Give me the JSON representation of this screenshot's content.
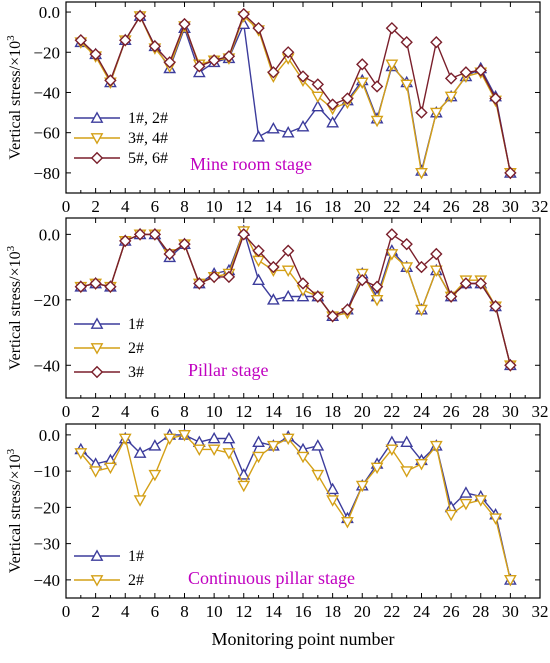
{
  "chart_data": [
    {
      "type": "line",
      "ylabel": "Vertical stress/×10",
      "ylabel_sup": "3",
      "xlim": [
        0,
        32
      ],
      "ylim": [
        -90,
        5
      ],
      "xticks": [
        0,
        2,
        4,
        6,
        8,
        10,
        12,
        14,
        16,
        18,
        20,
        22,
        24,
        26,
        28,
        30,
        32
      ],
      "yticks": [
        0,
        -20,
        -40,
        -60,
        -80
      ],
      "ytick_labels": [
        "0.0",
        "−20",
        "−40",
        "−60",
        "−80"
      ],
      "stage_label": "Mine room stage",
      "x": [
        1,
        2,
        3,
        4,
        5,
        6,
        7,
        8,
        9,
        10,
        11,
        12,
        13,
        14,
        15,
        16,
        17,
        18,
        19,
        20,
        21,
        22,
        23,
        24,
        25,
        26,
        27,
        28,
        29,
        30
      ],
      "series": [
        {
          "name": "1#, 2#",
          "color": "#3c3c9c",
          "marker": "triangle-up",
          "values": [
            -15,
            -21,
            -35,
            -14,
            -2,
            -17,
            -28,
            -8,
            -30,
            -25,
            -23,
            -6,
            -62,
            -58,
            -60,
            -57,
            -47,
            -55,
            -44,
            -34,
            -53,
            -27,
            -35,
            -79,
            -50,
            -42,
            -32,
            -28,
            -42,
            -80
          ]
        },
        {
          "name": "3#, 4#",
          "color": "#d4a017",
          "marker": "triangle-down",
          "values": [
            -15,
            -22,
            -35,
            -14,
            -2,
            -18,
            -27,
            -7,
            -26,
            -24,
            -23,
            -2,
            -9,
            -32,
            -23,
            -34,
            -42,
            -48,
            -45,
            -35,
            -54,
            -26,
            -36,
            -80,
            -50,
            -42,
            -32,
            -30,
            -44,
            -80
          ]
        },
        {
          "name": "5#, 6#",
          "color": "#7a1f2b",
          "marker": "diamond",
          "values": [
            -14,
            -21,
            -34,
            -14,
            -2,
            -17,
            -25,
            -6,
            -27,
            -24,
            -22,
            -1,
            -8,
            -30,
            -20,
            -32,
            -36,
            -46,
            -43,
            -26,
            -37,
            -8,
            -15,
            -50,
            -15,
            -33,
            -30,
            -29,
            -43,
            -80
          ]
        }
      ]
    },
    {
      "type": "line",
      "ylabel": "Vertical stress/×10",
      "ylabel_sup": "3",
      "xlim": [
        0,
        32
      ],
      "ylim": [
        -50,
        5
      ],
      "xticks": [
        0,
        2,
        4,
        6,
        8,
        10,
        12,
        14,
        16,
        18,
        20,
        22,
        24,
        26,
        28,
        30,
        32
      ],
      "yticks": [
        0,
        -20,
        -40
      ],
      "ytick_labels": [
        "0.0",
        "−20",
        "−40"
      ],
      "stage_label": "Pillar stage",
      "x": [
        1,
        2,
        3,
        4,
        5,
        6,
        7,
        8,
        9,
        10,
        11,
        12,
        13,
        14,
        15,
        16,
        17,
        18,
        19,
        20,
        21,
        22,
        23,
        24,
        25,
        26,
        27,
        28,
        29,
        30
      ],
      "series": [
        {
          "name": "1#",
          "color": "#3c3c9c",
          "marker": "triangle-up",
          "values": [
            -16,
            -15,
            -16,
            -2,
            0,
            0,
            -7,
            -3,
            -15,
            -12,
            -11,
            1,
            -14,
            -20,
            -19,
            -19,
            -19,
            -25,
            -23,
            -12,
            -19,
            -5,
            -10,
            -23,
            -11,
            -19,
            -15,
            -15,
            -22,
            -40
          ]
        },
        {
          "name": "2#",
          "color": "#d4a017",
          "marker": "triangle-down",
          "values": [
            -16,
            -15,
            -16,
            -2,
            0,
            0,
            -6,
            -3,
            -15,
            -13,
            -12,
            1,
            -8,
            -11,
            -11,
            -17,
            -19,
            -25,
            -24,
            -12,
            -20,
            -6,
            -10,
            -23,
            -11,
            -19,
            -14,
            -14,
            -22,
            -40
          ]
        },
        {
          "name": "3#",
          "color": "#7a1f2b",
          "marker": "diamond",
          "values": [
            -16,
            -15,
            -16,
            -2,
            0,
            0,
            -6,
            -3,
            -15,
            -13,
            -13,
            0,
            -5,
            -10,
            -5,
            -15,
            -19,
            -25,
            -23,
            -14,
            -16,
            0,
            -3,
            -10,
            -6,
            -19,
            -15,
            -15,
            -22,
            -40
          ]
        }
      ]
    },
    {
      "type": "line",
      "ylabel": "Vertical stress/×10",
      "ylabel_sup": "3",
      "xlabel": "Monitoring point number",
      "xlim": [
        0,
        32
      ],
      "ylim": [
        -45,
        3
      ],
      "xticks": [
        0,
        2,
        4,
        6,
        8,
        10,
        12,
        14,
        16,
        18,
        20,
        22,
        24,
        26,
        28,
        30,
        32
      ],
      "yticks": [
        0,
        -10,
        -20,
        -30,
        -40
      ],
      "ytick_labels": [
        "0.0",
        "−10",
        "−20",
        "−30",
        "−40"
      ],
      "stage_label": "Continuous pillar stage",
      "x": [
        1,
        2,
        3,
        4,
        5,
        6,
        7,
        8,
        9,
        10,
        11,
        12,
        13,
        14,
        15,
        16,
        17,
        18,
        19,
        20,
        21,
        22,
        23,
        24,
        25,
        26,
        27,
        28,
        29,
        30
      ],
      "series": [
        {
          "name": "1#",
          "color": "#3c3c9c",
          "marker": "triangle-up",
          "values": [
            -4,
            -8,
            -7,
            -1,
            -5,
            -3,
            0,
            0,
            -2,
            -1,
            -1,
            -11,
            -2,
            -3,
            -0.5,
            -4,
            -3,
            -15,
            -23,
            -14,
            -8,
            -2,
            -2,
            -7,
            -3,
            -20,
            -16,
            -17,
            -22,
            -40
          ]
        },
        {
          "name": "2#",
          "color": "#d4a017",
          "marker": "triangle-down",
          "values": [
            -5,
            -10,
            -9,
            -1,
            -18,
            -11,
            -1,
            0,
            -4,
            -4,
            -5,
            -14,
            -6,
            -3,
            -1,
            -6,
            -11,
            -18,
            -24,
            -14,
            -9,
            -4,
            -10,
            -8,
            -3,
            -22,
            -19,
            -18,
            -23,
            -40
          ]
        }
      ]
    }
  ]
}
